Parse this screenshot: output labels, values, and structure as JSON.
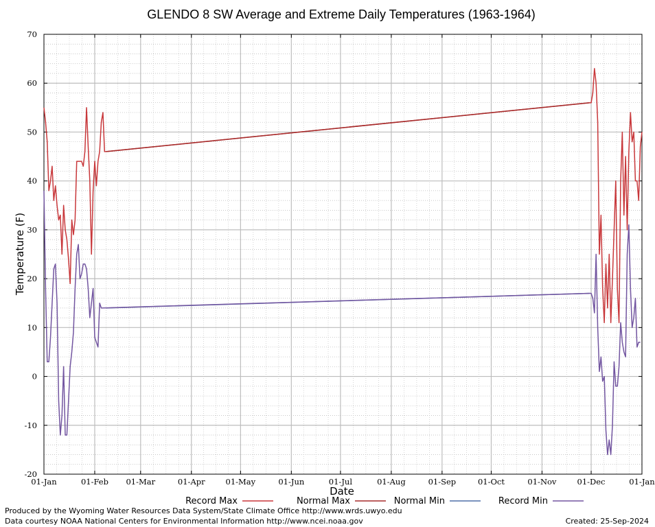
{
  "chart_data": {
    "type": "line",
    "title": "GLENDO 8 SW Average and Extreme Daily Temperatures (1963-1964)",
    "xlabel": "Date",
    "ylabel": "Temperature (F)",
    "ylim": [
      -20,
      70
    ],
    "yticks": [
      -20,
      -10,
      0,
      10,
      20,
      30,
      40,
      50,
      60,
      70
    ],
    "xlim": [
      0,
      365
    ],
    "xticks": [
      {
        "day": 0,
        "label": "01-Jan"
      },
      {
        "day": 31,
        "label": "01-Feb"
      },
      {
        "day": 59,
        "label": "01-Mar"
      },
      {
        "day": 90,
        "label": "01-Apr"
      },
      {
        "day": 120,
        "label": "01-May"
      },
      {
        "day": 151,
        "label": "01-Jun"
      },
      {
        "day": 181,
        "label": "01-Jul"
      },
      {
        "day": 212,
        "label": "01-Aug"
      },
      {
        "day": 243,
        "label": "01-Sep"
      },
      {
        "day": 273,
        "label": "01-Oct"
      },
      {
        "day": 304,
        "label": "01-Nov"
      },
      {
        "day": 334,
        "label": "01-Dec"
      },
      {
        "day": 365,
        "label": "01-Jan"
      }
    ],
    "grid": true,
    "legend_position": "bottom",
    "series": [
      {
        "name": "Record Max",
        "color": "#c8373a",
        "points": [
          [
            0,
            55
          ],
          [
            1,
            52
          ],
          [
            2,
            48
          ],
          [
            3,
            38
          ],
          [
            4,
            40
          ],
          [
            5,
            43
          ],
          [
            6,
            36
          ],
          [
            7,
            39
          ],
          [
            8,
            35
          ],
          [
            9,
            32
          ],
          [
            10,
            33
          ],
          [
            11,
            25
          ],
          [
            12,
            35
          ],
          [
            13,
            30
          ],
          [
            14,
            28
          ],
          [
            15,
            24
          ],
          [
            16,
            19
          ],
          [
            17,
            32
          ],
          [
            18,
            29
          ],
          [
            19,
            32
          ],
          [
            20,
            44
          ],
          [
            21,
            44
          ],
          [
            22,
            44
          ],
          [
            23,
            44
          ],
          [
            24,
            43
          ],
          [
            25,
            46
          ],
          [
            26,
            55
          ],
          [
            27,
            47
          ],
          [
            28,
            40
          ],
          [
            29,
            25
          ],
          [
            30,
            38
          ],
          [
            31,
            44
          ],
          [
            32,
            39
          ],
          [
            33,
            44
          ],
          [
            34,
            46
          ],
          [
            35,
            52
          ],
          [
            36,
            54
          ],
          [
            37,
            46
          ],
          [
            38,
            46
          ],
          [
            333,
            56
          ],
          [
            334,
            56
          ],
          [
            335,
            58
          ],
          [
            336,
            63
          ],
          [
            337,
            60
          ],
          [
            338,
            52
          ],
          [
            339,
            25
          ],
          [
            340,
            33
          ],
          [
            341,
            18
          ],
          [
            342,
            11
          ],
          [
            343,
            23
          ],
          [
            344,
            14
          ],
          [
            345,
            25
          ],
          [
            346,
            11
          ],
          [
            347,
            20
          ],
          [
            348,
            30
          ],
          [
            349,
            40
          ],
          [
            350,
            18
          ],
          [
            351,
            11
          ],
          [
            352,
            40
          ],
          [
            353,
            50
          ],
          [
            354,
            33
          ],
          [
            355,
            45
          ],
          [
            356,
            30
          ],
          [
            357,
            46
          ],
          [
            358,
            54
          ],
          [
            359,
            48
          ],
          [
            360,
            50
          ],
          [
            361,
            40
          ],
          [
            362,
            40
          ],
          [
            363,
            36
          ],
          [
            364,
            47
          ],
          [
            365,
            50
          ]
        ]
      },
      {
        "name": "Normal Max",
        "color": "#a52a2a",
        "points": [
          [
            38,
            46
          ],
          [
            333,
            56
          ]
        ]
      },
      {
        "name": "Normal Min",
        "color": "#4f6fa8",
        "points": [
          [
            38,
            14
          ],
          [
            333,
            17
          ]
        ]
      },
      {
        "name": "Record Min",
        "color": "#7255a0",
        "points": [
          [
            0,
            38
          ],
          [
            1,
            18
          ],
          [
            2,
            3
          ],
          [
            3,
            3
          ],
          [
            4,
            8
          ],
          [
            5,
            15
          ],
          [
            6,
            22
          ],
          [
            7,
            23
          ],
          [
            8,
            15
          ],
          [
            9,
            -5
          ],
          [
            10,
            -12
          ],
          [
            11,
            -8
          ],
          [
            12,
            2
          ],
          [
            13,
            -12
          ],
          [
            14,
            -12
          ],
          [
            15,
            -5
          ],
          [
            16,
            2
          ],
          [
            17,
            5
          ],
          [
            18,
            9
          ],
          [
            19,
            18
          ],
          [
            20,
            25
          ],
          [
            21,
            27
          ],
          [
            22,
            20
          ],
          [
            23,
            21
          ],
          [
            24,
            23
          ],
          [
            25,
            23
          ],
          [
            26,
            22
          ],
          [
            27,
            18
          ],
          [
            28,
            12
          ],
          [
            29,
            15
          ],
          [
            30,
            18
          ],
          [
            31,
            8
          ],
          [
            32,
            7
          ],
          [
            33,
            6
          ],
          [
            34,
            15
          ],
          [
            35,
            14
          ],
          [
            333,
            17
          ],
          [
            334,
            17
          ],
          [
            335,
            16
          ],
          [
            336,
            13
          ],
          [
            337,
            25
          ],
          [
            338,
            10
          ],
          [
            339,
            1
          ],
          [
            340,
            4
          ],
          [
            341,
            -1
          ],
          [
            342,
            0
          ],
          [
            343,
            -11
          ],
          [
            344,
            -16
          ],
          [
            345,
            -13
          ],
          [
            346,
            -16
          ],
          [
            347,
            -10
          ],
          [
            348,
            3
          ],
          [
            349,
            -2
          ],
          [
            350,
            -2
          ],
          [
            351,
            2
          ],
          [
            352,
            11
          ],
          [
            353,
            7
          ],
          [
            354,
            5
          ],
          [
            355,
            4
          ],
          [
            356,
            25
          ],
          [
            357,
            31
          ],
          [
            358,
            18
          ],
          [
            359,
            10
          ],
          [
            360,
            12
          ],
          [
            361,
            16
          ],
          [
            362,
            6
          ],
          [
            363,
            7
          ],
          [
            364,
            7
          ]
        ]
      }
    ]
  },
  "footer": {
    "credit_line_1": "Produced by the Wyoming Water Resources Data System/State Climate Office http://www.wrds.uwyo.edu",
    "credit_line_2": "Data courtesy NOAA National Centers for Environmental Information http://www.ncei.noaa.gov",
    "created": "Created:  25-Sep-2024"
  }
}
